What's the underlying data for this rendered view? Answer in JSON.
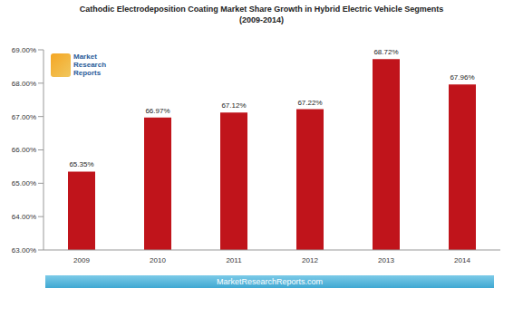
{
  "chart_data": {
    "type": "bar",
    "title": "Cathodic Electrodeposition Coating Market Share Growth in Hybrid Electric Vehicle Segments (2009-2014)",
    "categories": [
      "2009",
      "2010",
      "2011",
      "2012",
      "2013",
      "2014"
    ],
    "values": [
      65.35,
      66.97,
      67.12,
      67.22,
      68.72,
      67.96
    ],
    "value_labels": [
      "65.35%",
      "66.97%",
      "67.12%",
      "67.22%",
      "68.72%",
      "67.96%"
    ],
    "color": "#c0141b",
    "ylim": [
      63,
      69
    ],
    "yticks": [
      {
        "value": 63,
        "label": "63.00%"
      },
      {
        "value": 64,
        "label": "64.00%"
      },
      {
        "value": 65,
        "label": "65.00%"
      },
      {
        "value": 66,
        "label": "66.00%"
      },
      {
        "value": 67,
        "label": "67.00%"
      },
      {
        "value": 68,
        "label": "68.00%"
      },
      {
        "value": 69,
        "label": "69.00%"
      }
    ],
    "grid": false,
    "data_labels": true,
    "annotations": [
      "Market Research Reports",
      "MarketResearchReports.com"
    ]
  }
}
